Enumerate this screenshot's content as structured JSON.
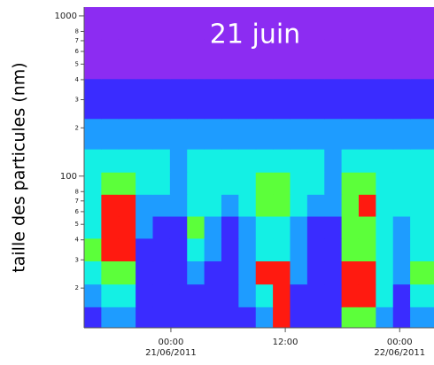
{
  "chart_data": {
    "type": "heatmap",
    "title": "21 juin",
    "y_label": "taille des particules (nm)",
    "log_y": true,
    "xlim": [
      -9.1,
      27.6
    ],
    "xticks": [
      {
        "value": 0,
        "label": "00:00"
      },
      {
        "value": 12,
        "label": "12:00"
      },
      {
        "value": 24,
        "label": "00:00"
      }
    ],
    "x_tick_sublabels": [
      "21/06/2011",
      null,
      "22/06/2011"
    ],
    "ylim": [
      11.3,
      1135
    ],
    "yticks": [
      {
        "value": 1000,
        "label": "1000"
      },
      {
        "value": 800,
        "label": "8"
      },
      {
        "value": 700,
        "label": "7"
      },
      {
        "value": 600,
        "label": "6"
      },
      {
        "value": 500,
        "label": "5"
      },
      {
        "value": 400,
        "label": "4"
      },
      {
        "value": 300,
        "label": "3"
      },
      {
        "value": 200,
        "label": "2"
      },
      100,
      {
        "value": 80,
        "label": "8"
      },
      {
        "value": 70,
        "label": "7"
      },
      {
        "value": 60,
        "label": "6"
      },
      {
        "value": 50,
        "label": "5"
      },
      {
        "value": 40,
        "label": "4"
      },
      {
        "value": 30,
        "label": "3"
      },
      {
        "value": 20,
        "label": "2"
      }
    ],
    "colors": [
      "#8c2cf2",
      "#3a2cff",
      "#1e9cff",
      "#14f0e4",
      "#5cff3a",
      "#ff1a10"
    ],
    "x": [
      -8.2,
      -6.4,
      -4.6,
      -2.8,
      -1.0,
      0.8,
      2.6,
      4.4,
      6.2,
      8.0,
      9.8,
      11.6,
      13.4,
      15.2,
      17.0,
      18.8,
      20.6,
      22.4,
      24.2,
      26.0
    ],
    "y": [
      13,
      18,
      25,
      35,
      48,
      66,
      90,
      125,
      175,
      300,
      550,
      950
    ],
    "z": [
      [
        1,
        2,
        2,
        1,
        1,
        1,
        1,
        1,
        1,
        1,
        2,
        5,
        1,
        1,
        1,
        4,
        4,
        2,
        1,
        2
      ],
      [
        2,
        3,
        3,
        1,
        1,
        1,
        1,
        1,
        1,
        2,
        3,
        5,
        1,
        1,
        1,
        5,
        5,
        3,
        1,
        3
      ],
      [
        3,
        4,
        4,
        1,
        1,
        1,
        2,
        1,
        1,
        2,
        5,
        5,
        2,
        1,
        1,
        5,
        5,
        3,
        2,
        4
      ],
      [
        4,
        5,
        5,
        1,
        1,
        1,
        3,
        2,
        1,
        2,
        3,
        3,
        2,
        1,
        1,
        4,
        4,
        3,
        2,
        3
      ],
      [
        3,
        5,
        5,
        2,
        1,
        1,
        4,
        2,
        1,
        2,
        3,
        3,
        2,
        1,
        1,
        4,
        4,
        3,
        2,
        3
      ],
      [
        3,
        5,
        5,
        2,
        2,
        2,
        3,
        3,
        2,
        3,
        4,
        4,
        3,
        2,
        2,
        4,
        5,
        3,
        3,
        3
      ],
      [
        3,
        4,
        4,
        3,
        3,
        2,
        3,
        3,
        3,
        3,
        4,
        4,
        3,
        3,
        2,
        4,
        4,
        3,
        3,
        3
      ],
      [
        3,
        3,
        3,
        3,
        3,
        2,
        3,
        3,
        3,
        3,
        3,
        3,
        3,
        3,
        2,
        3,
        3,
        3,
        3,
        3
      ],
      [
        2,
        2,
        2,
        2,
        2,
        2,
        2,
        2,
        2,
        2,
        2,
        2,
        2,
        2,
        2,
        2,
        2,
        2,
        2,
        2
      ],
      [
        1,
        1,
        1,
        1,
        1,
        1,
        1,
        1,
        1,
        1,
        1,
        1,
        1,
        1,
        1,
        1,
        1,
        1,
        1,
        1
      ],
      [
        0,
        0,
        0,
        0,
        0,
        0,
        0,
        0,
        0,
        0,
        0,
        0,
        0,
        0,
        0,
        0,
        0,
        0,
        0,
        0
      ],
      [
        0,
        0,
        0,
        0,
        0,
        0,
        0,
        0,
        0,
        0,
        0,
        0,
        0,
        0,
        0,
        0,
        0,
        0,
        0,
        0
      ]
    ]
  }
}
